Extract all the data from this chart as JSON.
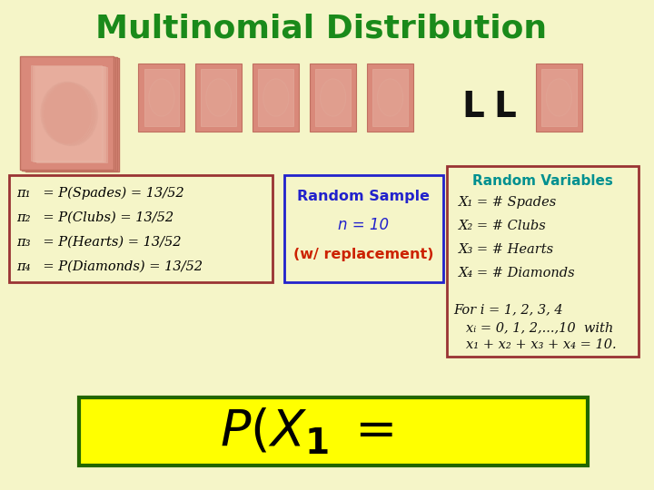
{
  "background_color": "#f5f5c8",
  "title": "Multinomial Distribution",
  "title_color": "#1a8a1a",
  "title_fontsize": 26,
  "card_color": "#d9897a",
  "card_color_light": "#e8b0a0",
  "card_border_color": "#c07060",
  "pi_box_color": "#f5f5c8",
  "pi_box_border": "#993333",
  "pi_lines": [
    "π₁   = P(Spades) = 13/52",
    "π₂   = P(Clubs) = 13/52",
    "π₃   = P(Hearts) = 13/52",
    "π₄   = P(Diamonds) = 13/52"
  ],
  "random_sample_box_border": "#2222cc",
  "random_sample_line1": "Random Sample",
  "random_sample_line2": "n = 10",
  "random_sample_line3": "(w/ replacement)",
  "random_sample_color1": "#2222cc",
  "random_sample_color2": "#2222cc",
  "random_sample_color3": "#cc2200",
  "rv_box_border": "#993333",
  "rv_title": "Random Variables",
  "rv_title_color": "#009090",
  "rv_lines": [
    "X₁ = # Spades",
    "X₂ = # Clubs",
    "X₃ = # Hearts",
    "X₄ = # Diamonds"
  ],
  "for_i_text": "For i = 1, 2, 3, 4",
  "xi_text": "xᵢ = 0, 1, 2,...,10  with",
  "sum_text": "x₁ + x₂ + x₃ + x₄ = 10.",
  "bottom_box_bg": "#ffff00",
  "bottom_box_border": "#226600",
  "ll_color": "#111111"
}
